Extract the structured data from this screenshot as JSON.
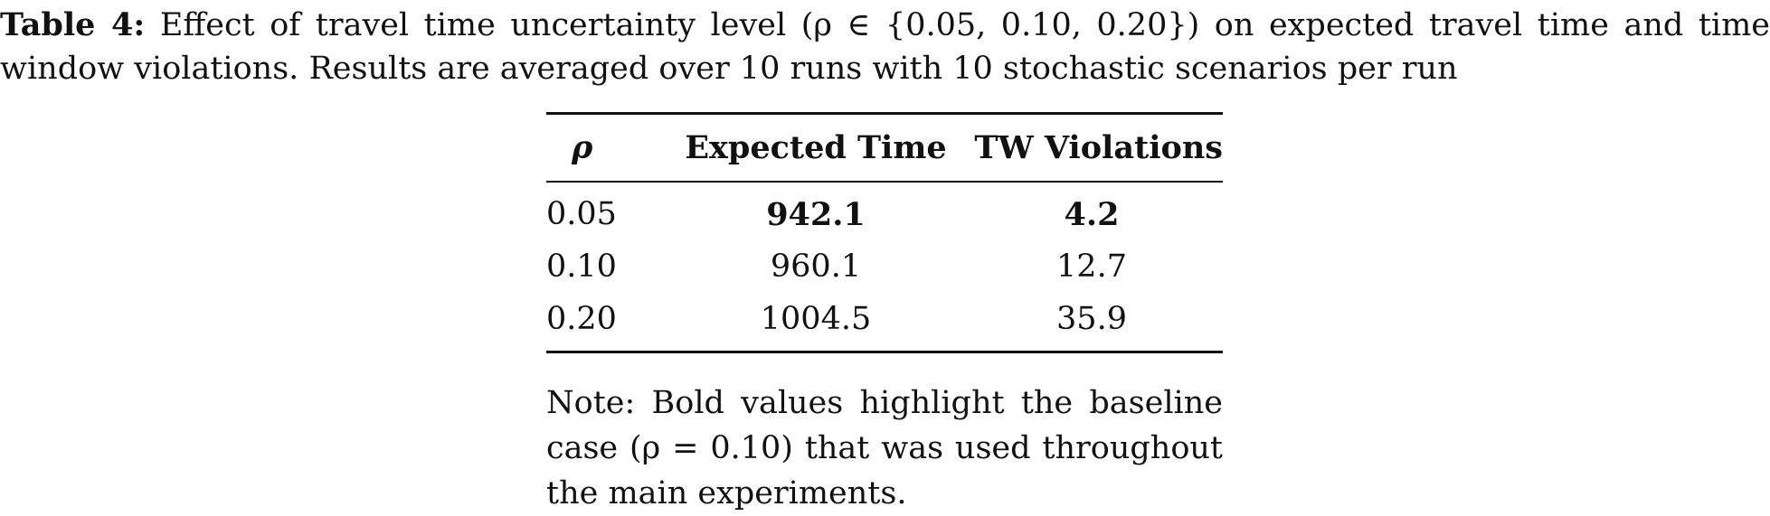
{
  "caption": {
    "label": "Table 4:",
    "text": "Effect of travel time uncertainty level (ρ ∈ {0.05, 0.10, 0.20}) on expected travel time and time window violations. Results are averaged over 10 runs with 10 stochastic scenarios per run"
  },
  "table": {
    "headers": [
      "ρ",
      "Expected Time",
      "TW Violations"
    ],
    "rows": [
      {
        "rho": "0.05",
        "expected_time": "942.1",
        "tw_violations": "4.2"
      },
      {
        "rho": "0.10",
        "expected_time": "960.1",
        "tw_violations": "12.7"
      },
      {
        "rho": "0.20",
        "expected_time": "1004.5",
        "tw_violations": "35.9"
      }
    ]
  },
  "note": "Note: Bold values highlight the baseline case (ρ = 0.10) that was used throughout the main experiments."
}
